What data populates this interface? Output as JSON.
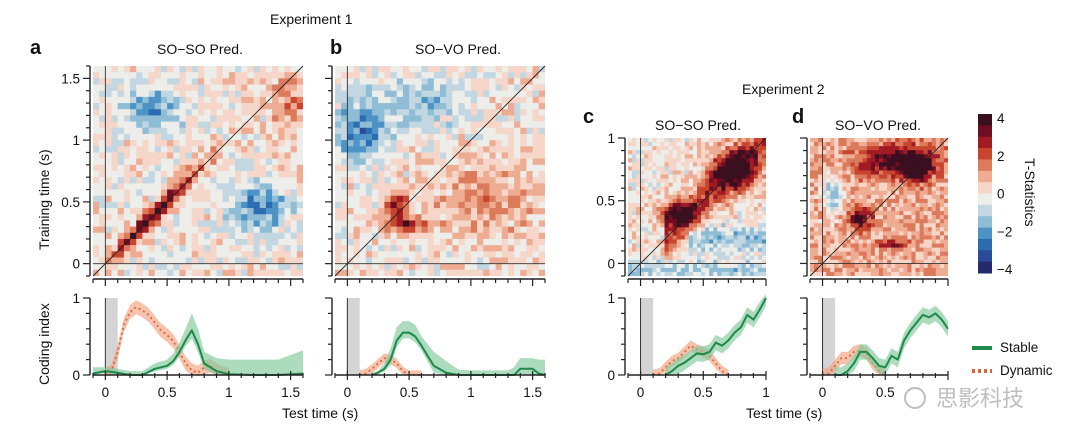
{
  "figure": {
    "experiment1_title": "Experiment 1",
    "experiment2_title": "Experiment 2",
    "shared_xlabel": "Test time (s)",
    "heatmap_ylabel": "Training time (s)",
    "coding_ylabel": "Coding index",
    "watermark": "思影科技"
  },
  "colorbar": {
    "label": "T-Statistics",
    "ticks": [
      "4",
      "2",
      "0",
      "−2",
      "−4"
    ],
    "colors": [
      "#3b0f1f",
      "#6e0e22",
      "#a11b25",
      "#c8452f",
      "#dc7a5c",
      "#eeac93",
      "#f5d6c9",
      "#ededea",
      "#c2d7e2",
      "#8fbdd6",
      "#4d93c5",
      "#2c6db2",
      "#2b4a99",
      "#252a6b"
    ]
  },
  "legend": {
    "items": [
      {
        "label": "Stable",
        "color": "#1e8a4a",
        "style": "solid"
      },
      {
        "label": "Dynamic",
        "color": "#d9673b",
        "style": "dotted"
      }
    ]
  },
  "chart_data": [
    {
      "panel": "a",
      "type": "heatmap",
      "title": "SO−SO Pred.",
      "xlabel": "",
      "ylabel": "Training time (s)",
      "xlim": [
        -0.1,
        1.6
      ],
      "ylim": [
        -0.1,
        1.6
      ],
      "yticks": [
        "0",
        "0.5",
        "1",
        "1.5"
      ],
      "significant_clusters": "diagonal band from 0 to 0.9 s, peak T≈4 near 0.4 s",
      "colorscale_range": [
        -4,
        4
      ]
    },
    {
      "panel": "b",
      "type": "heatmap",
      "title": "SO−VO Pred.",
      "xlim": [
        -0.1,
        1.6
      ],
      "ylim": [
        -0.1,
        1.6
      ],
      "significant_clusters": "off-diagonal cluster at training 0.3–0.5 s, test 0.3–0.6 s",
      "colorscale_range": [
        -4,
        4
      ]
    },
    {
      "panel": "c",
      "type": "heatmap",
      "title": "SO−SO Pred.",
      "xlim": [
        -0.1,
        1.0
      ],
      "ylim": [
        -0.1,
        1.0
      ],
      "yticks": [
        "0",
        "0.5",
        "1"
      ],
      "significant_clusters": "diagonal band 0.3–1.0 s",
      "colorscale_range": [
        -4,
        4
      ]
    },
    {
      "panel": "d",
      "type": "heatmap",
      "title": "SO−VO Pred.",
      "xlim": [
        -0.1,
        1.0
      ],
      "ylim": [
        -0.1,
        1.0
      ],
      "significant_clusters": "upper cluster training 0.6–1.0 s; diagonal cluster 0.3–0.5 s; lower cluster training ~0.15 s",
      "colorscale_range": [
        -4,
        4
      ]
    },
    {
      "panel": "a-coding",
      "type": "line",
      "xlabel": "",
      "ylabel": "Coding index",
      "xlim": [
        -0.1,
        1.6
      ],
      "ylim": [
        0,
        1
      ],
      "xticks": [
        "0",
        "0.5",
        "1",
        "1.5"
      ],
      "yticks": [
        "0",
        "1"
      ],
      "stimulus_window": [
        0,
        0.1
      ],
      "series": [
        {
          "name": "Dynamic",
          "x": [
            0,
            0.05,
            0.1,
            0.15,
            0.2,
            0.25,
            0.3,
            0.35,
            0.4,
            0.45,
            0.5,
            0.55,
            0.6,
            0.65,
            0.7,
            0.75,
            0.8,
            0.85,
            0.9,
            0.95,
            1.0
          ],
          "values": [
            0,
            0.05,
            0.3,
            0.65,
            0.82,
            0.88,
            0.84,
            0.78,
            0.68,
            0.58,
            0.52,
            0.44,
            0.3,
            0.15,
            0.06,
            0.03,
            0.1,
            0.12,
            0.06,
            0.02,
            0
          ],
          "band": 0.09
        },
        {
          "name": "Stable",
          "x": [
            -0.1,
            0,
            0.1,
            0.2,
            0.3,
            0.4,
            0.5,
            0.55,
            0.6,
            0.65,
            0.7,
            0.75,
            0.8,
            0.9,
            1.0,
            1.2,
            1.4,
            1.6
          ],
          "values": [
            0.02,
            0.05,
            0.03,
            0,
            0,
            0.08,
            0.12,
            0.18,
            0.3,
            0.45,
            0.58,
            0.4,
            0.15,
            0.05,
            0.01,
            0,
            0,
            0.02
          ],
          "band_upper": [
            0.1,
            0.1,
            0.08,
            0.05,
            0.05,
            0.15,
            0.2,
            0.28,
            0.42,
            0.6,
            0.8,
            0.6,
            0.3,
            0.22,
            0.2,
            0.2,
            0.2,
            0.32
          ]
        }
      ]
    },
    {
      "panel": "b-coding",
      "type": "line",
      "xlim": [
        -0.1,
        1.6
      ],
      "ylim": [
        0,
        1
      ],
      "xticks": [
        "0",
        "0.5",
        "1",
        "1.5"
      ],
      "stimulus_window": [
        0,
        0.1
      ],
      "series": [
        {
          "name": "Dynamic",
          "x": [
            0.1,
            0.15,
            0.2,
            0.25,
            0.3,
            0.35,
            0.4,
            0.45,
            0.5,
            0.55,
            0.6
          ],
          "values": [
            0,
            0.02,
            0.08,
            0.15,
            0.22,
            0.2,
            0.15,
            0.05,
            0,
            0,
            0
          ],
          "band": 0.06
        },
        {
          "name": "Stable",
          "x": [
            0.2,
            0.25,
            0.3,
            0.35,
            0.4,
            0.45,
            0.5,
            0.55,
            0.6,
            0.65,
            0.7,
            0.8,
            0.9,
            1.0,
            1.3,
            1.35,
            1.4,
            1.5,
            1.55,
            1.6
          ],
          "values": [
            0,
            0.03,
            0.08,
            0.2,
            0.45,
            0.55,
            0.55,
            0.5,
            0.38,
            0.25,
            0.12,
            0.03,
            0,
            0,
            0,
            0,
            0.08,
            0.08,
            0.02,
            0
          ],
          "band_upper": [
            0.02,
            0.06,
            0.15,
            0.35,
            0.62,
            0.7,
            0.7,
            0.65,
            0.5,
            0.4,
            0.3,
            0.18,
            0.07,
            0.06,
            0.06,
            0.1,
            0.22,
            0.22,
            0.2,
            0.2
          ]
        }
      ]
    },
    {
      "panel": "c-coding",
      "type": "line",
      "xlim": [
        -0.1,
        1.0
      ],
      "ylim": [
        0,
        1
      ],
      "xticks": [
        "0",
        "0.5",
        "1"
      ],
      "yticks": [
        "0",
        "1"
      ],
      "stimulus_window": [
        0,
        0.1
      ],
      "series": [
        {
          "name": "Dynamic",
          "x": [
            0.1,
            0.15,
            0.2,
            0.25,
            0.3,
            0.35,
            0.4,
            0.45,
            0.5,
            0.55,
            0.6,
            0.65,
            0.7
          ],
          "values": [
            0,
            0.02,
            0.1,
            0.18,
            0.22,
            0.3,
            0.38,
            0.33,
            0.3,
            0.25,
            0.15,
            0.05,
            0
          ],
          "band": 0.07
        },
        {
          "name": "Stable",
          "x": [
            0.2,
            0.25,
            0.3,
            0.35,
            0.4,
            0.45,
            0.5,
            0.55,
            0.6,
            0.65,
            0.7,
            0.75,
            0.8,
            0.85,
            0.9,
            0.95,
            1.0
          ],
          "values": [
            0,
            0.05,
            0.12,
            0.16,
            0.22,
            0.28,
            0.27,
            0.3,
            0.42,
            0.38,
            0.45,
            0.55,
            0.62,
            0.78,
            0.72,
            0.85,
            1.0
          ],
          "band": 0.1
        }
      ]
    },
    {
      "panel": "d-coding",
      "type": "line",
      "xlim": [
        -0.1,
        1.0
      ],
      "ylim": [
        0,
        1
      ],
      "xticks": [
        "0",
        "0.5"
      ],
      "stimulus_window": [
        0,
        0.1
      ],
      "series": [
        {
          "name": "Dynamic",
          "x": [
            0,
            0.05,
            0.1,
            0.15,
            0.2,
            0.25,
            0.3,
            0.35,
            0.4,
            0.45,
            0.5
          ],
          "values": [
            0,
            0.02,
            0.12,
            0.22,
            0.22,
            0.3,
            0.32,
            0.28,
            0.15,
            0.05,
            0
          ],
          "band": 0.08
        },
        {
          "name": "Stable",
          "x": [
            0.1,
            0.15,
            0.2,
            0.25,
            0.3,
            0.35,
            0.4,
            0.45,
            0.5,
            0.55,
            0.6,
            0.65,
            0.7,
            0.75,
            0.8,
            0.85,
            0.9,
            0.95,
            1.0
          ],
          "values": [
            0,
            0,
            0.05,
            0.15,
            0.3,
            0.3,
            0.22,
            0.12,
            0.1,
            0.25,
            0.2,
            0.45,
            0.58,
            0.68,
            0.78,
            0.75,
            0.8,
            0.72,
            0.6
          ],
          "band": 0.1
        }
      ]
    }
  ]
}
